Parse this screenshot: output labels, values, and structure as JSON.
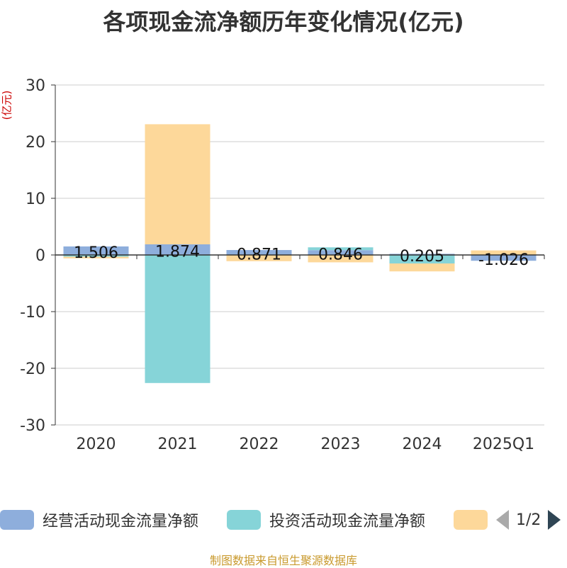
{
  "title": "各项现金流净额历年变化情况(亿元)",
  "unit_label": "(亿元)",
  "source_text": "制图数据来自恒生聚源数据库",
  "legend": {
    "items": [
      {
        "label": "经营活动现金流量净额",
        "color": "#8eaedc"
      },
      {
        "label": "投资活动现金流量净额",
        "color": "#86d4d8"
      },
      {
        "label": "",
        "color": "#fdd89a"
      }
    ],
    "page": "1/2"
  },
  "chart_data": {
    "type": "bar",
    "stacked": true,
    "categories": [
      "2020",
      "2021",
      "2022",
      "2023",
      "2024",
      "2025Q1"
    ],
    "ylim": [
      -30,
      30
    ],
    "yticks": [
      30,
      20,
      10,
      0,
      -10,
      -20,
      -30
    ],
    "grid": true,
    "legend_position": "bottom",
    "series": [
      {
        "name": "经营活动现金流量净额",
        "color": "#8eaedc",
        "values": [
          1.506,
          1.874,
          0.871,
          0.846,
          0.205,
          -1.026
        ]
      },
      {
        "name": "投资活动现金流量净额",
        "color": "#86d4d8",
        "values": [
          -0.3,
          -22.6,
          0.0,
          0.5,
          -1.5,
          0.0
        ]
      },
      {
        "color": "#fdd89a",
        "values": [
          -0.3,
          21.2,
          -1.1,
          -1.3,
          -1.4,
          0.8
        ]
      }
    ],
    "data_labels": [
      "1.506",
      "1.874",
      "0.871",
      "0.846",
      "0.205",
      "-1.026"
    ]
  }
}
